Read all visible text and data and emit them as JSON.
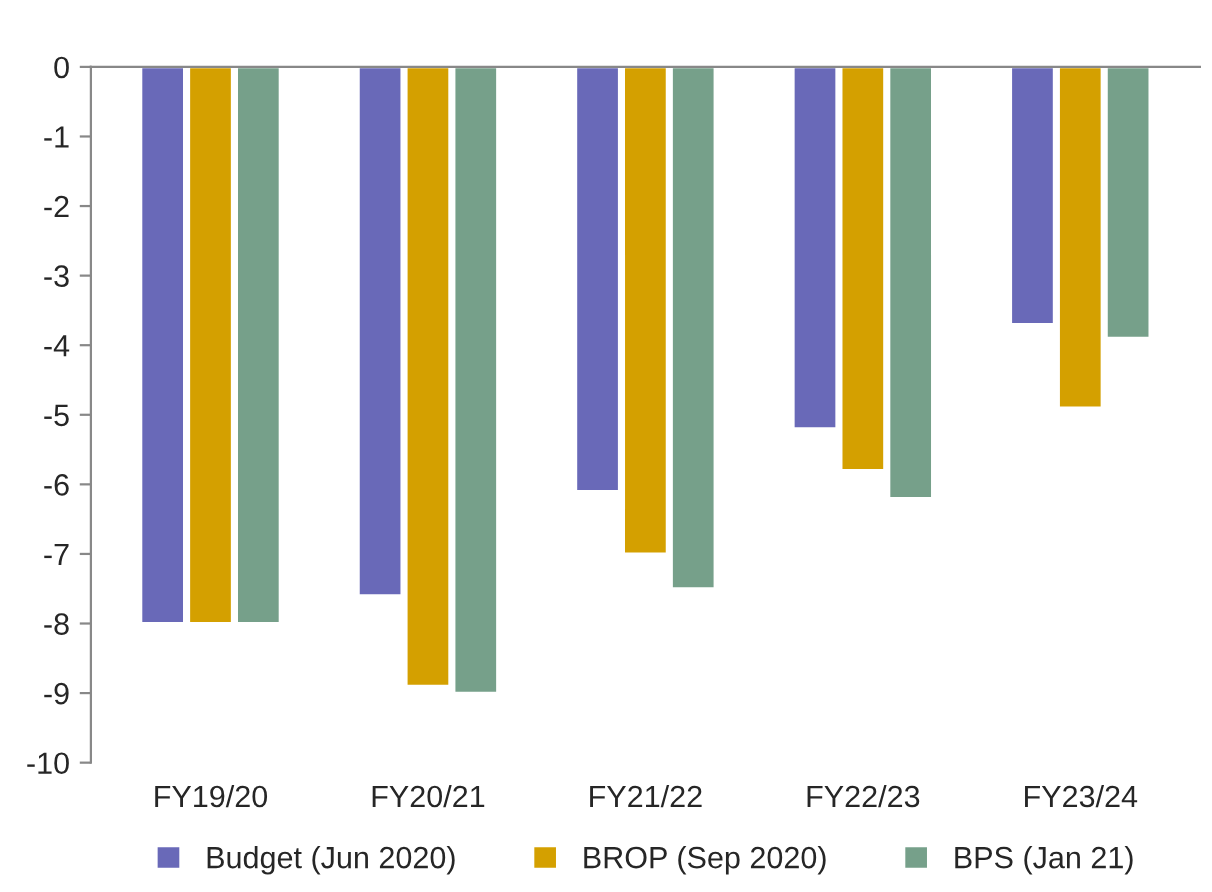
{
  "chart_data": {
    "type": "bar",
    "categories": [
      "FY19/20",
      "FY20/21",
      "FY21/22",
      "FY22/23",
      "FY23/24"
    ],
    "series": [
      {
        "name": "Budget (Jun 2020)",
        "color": "#6969b8",
        "values": [
          -8,
          -7.6,
          -6.1,
          -5.2,
          -3.7
        ]
      },
      {
        "name": "BROP (Sep 2020)",
        "color": "#d4a000",
        "values": [
          -8,
          -8.9,
          -7.0,
          -5.8,
          -4.9
        ]
      },
      {
        "name": "BPS (Jan 21)",
        "color": "#76a08a",
        "values": [
          -8,
          -9.0,
          -7.5,
          -6.2,
          -3.9
        ]
      }
    ],
    "ylim": [
      -10,
      0
    ],
    "yticks": [
      -10,
      -9,
      -8,
      -7,
      -6,
      -5,
      -4,
      -3,
      -2,
      -1,
      0
    ],
    "grid": false,
    "legend": "bottom"
  }
}
